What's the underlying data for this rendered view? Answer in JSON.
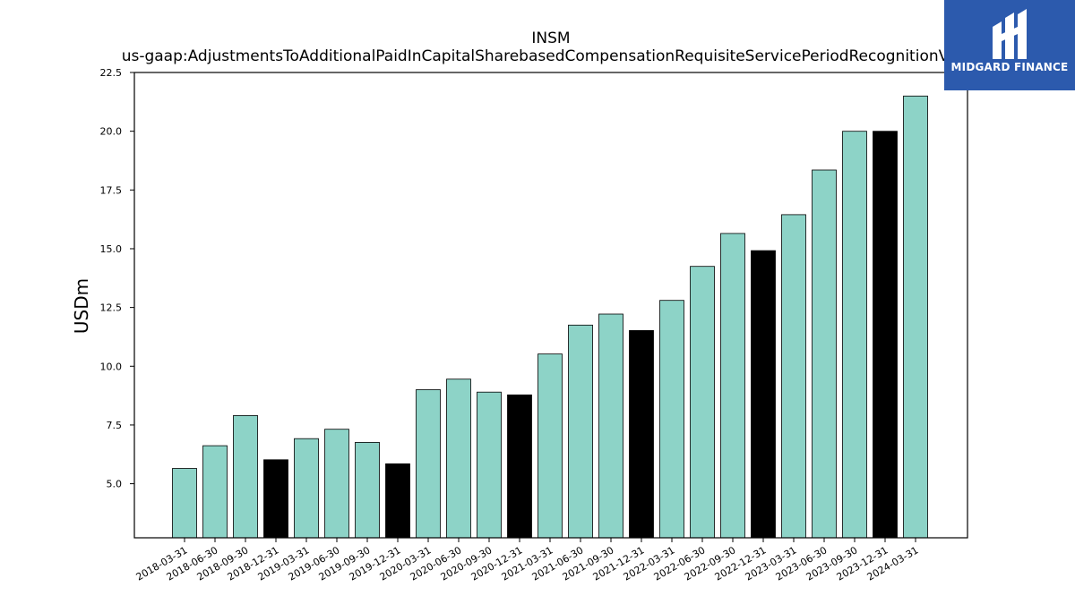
{
  "chart_data": {
    "type": "bar",
    "title": "INSM",
    "subtitle": "us-gaap:AdjustmentsToAdditionalPaidInCapitalSharebasedCompensationRequisiteServicePeriodRecognitionValue",
    "xlabel": "",
    "ylabel": "USDm",
    "ylim": [
      2.7,
      22.5
    ],
    "yticks": [
      "5.0",
      "7.5",
      "10.0",
      "12.5",
      "15.0",
      "17.5",
      "20.0",
      "22.5"
    ],
    "grid": false,
    "categories": [
      "2018-03-31",
      "2018-06-30",
      "2018-09-30",
      "2018-12-31",
      "2019-03-31",
      "2019-06-30",
      "2019-09-30",
      "2019-12-31",
      "2020-03-31",
      "2020-06-30",
      "2020-09-30",
      "2020-12-31",
      "2021-03-31",
      "2021-06-30",
      "2021-09-30",
      "2021-12-31",
      "2022-03-31",
      "2022-06-30",
      "2022-09-30",
      "2022-12-31",
      "2023-03-31",
      "2023-06-30",
      "2023-09-30",
      "2023-12-31",
      "2024-03-31"
    ],
    "values": [
      5.65,
      6.62,
      7.9,
      6.02,
      6.92,
      7.32,
      6.76,
      5.85,
      9.0,
      9.45,
      8.9,
      8.78,
      10.52,
      11.75,
      12.22,
      11.52,
      12.8,
      14.25,
      15.65,
      14.92,
      16.45,
      18.35,
      20.0,
      20.0,
      21.5
    ],
    "colors": {
      "quarter": "#8dd3c7",
      "year_end": "#000000"
    },
    "highlight_year_end": [
      false,
      false,
      false,
      true,
      false,
      false,
      false,
      true,
      false,
      false,
      false,
      true,
      false,
      false,
      false,
      true,
      false,
      false,
      false,
      true,
      false,
      false,
      false,
      true,
      false
    ]
  },
  "logo": {
    "text": "MIDGARD FINANCE",
    "background": "#2c5aad",
    "icon": "midgard-logo-icon"
  }
}
